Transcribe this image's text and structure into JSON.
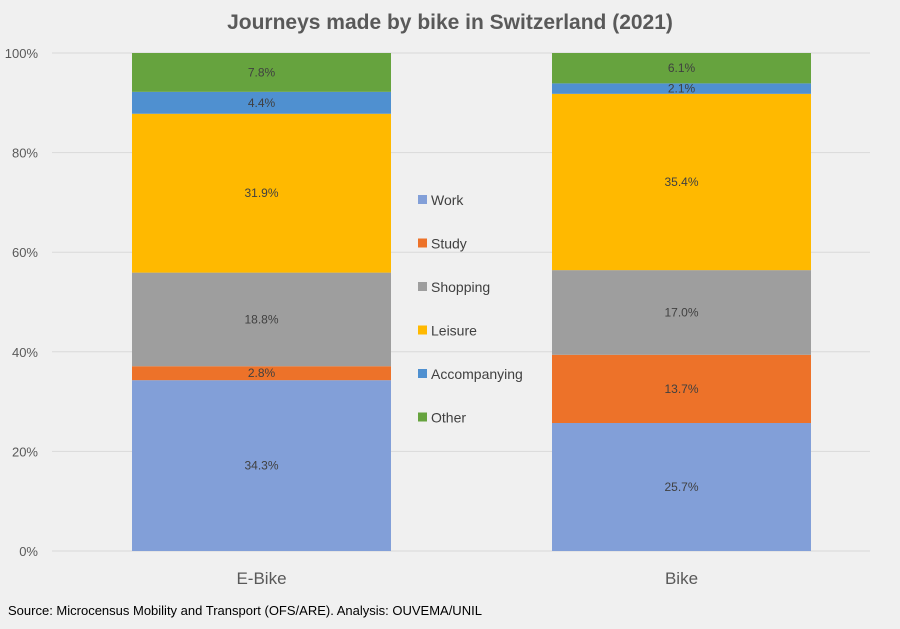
{
  "chart_data": {
    "type": "bar",
    "stacked": true,
    "title": "Journeys made by bike in Switzerland (2021)",
    "xlabel": "",
    "ylabel": "",
    "ylim": [
      0,
      100
    ],
    "yticks": [
      "0%",
      "20%",
      "40%",
      "60%",
      "80%",
      "100%"
    ],
    "grid": true,
    "legend_position": "center",
    "categories": [
      "E-Bike",
      "Bike"
    ],
    "series": [
      {
        "name": "Work",
        "color": "#829fd8",
        "values": [
          34.3,
          25.7
        ],
        "labels": [
          "34.3%",
          "25.7%"
        ]
      },
      {
        "name": "Study",
        "color": "#ed7229",
        "values": [
          2.8,
          13.7
        ],
        "labels": [
          "2.8%",
          "13.7%"
        ]
      },
      {
        "name": "Shopping",
        "color": "#9e9e9e",
        "values": [
          18.8,
          17.0
        ],
        "labels": [
          "18.8%",
          "17.0%"
        ]
      },
      {
        "name": "Leisure",
        "color": "#ffb900",
        "values": [
          31.9,
          35.4
        ],
        "labels": [
          "31.9%",
          "35.4%"
        ]
      },
      {
        "name": "Accompanying",
        "color": "#4f90d0",
        "values": [
          4.4,
          2.1
        ],
        "labels": [
          "4.4%",
          "2.1%"
        ]
      },
      {
        "name": "Other",
        "color": "#66a33e",
        "values": [
          7.8,
          6.1
        ],
        "labels": [
          "7.8%",
          "6.1%"
        ]
      }
    ]
  },
  "source": "Source: Microcensus Mobility and Transport (OFS/ARE). Analysis: OUVEMA/UNIL"
}
